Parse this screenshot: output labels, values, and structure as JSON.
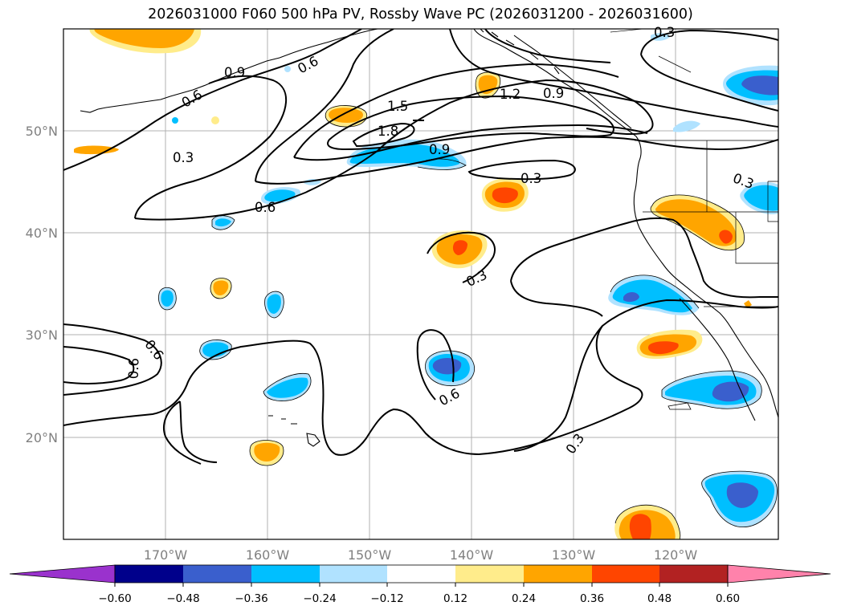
{
  "title": "2026031000 F060 500 hPa PV, Rossby Wave PC (2026031200 - 2026031600)",
  "map": {
    "lon_range": [
      -180,
      -110
    ],
    "lat_range": [
      10,
      60
    ],
    "lat_labels": [
      "50°N",
      "40°N",
      "30°N",
      "20°N"
    ],
    "lat_values": [
      50,
      40,
      30,
      20
    ],
    "lon_labels": [
      "170°W",
      "160°W",
      "150°W",
      "140°W",
      "130°W",
      "120°W"
    ],
    "lon_values": [
      -170,
      -160,
      -150,
      -140,
      -130,
      -120
    ],
    "contour_labels": [
      "0.3",
      "0.6",
      "0.9",
      "1.2",
      "1.5",
      "1.8",
      "0.9",
      "0.6",
      "0.3",
      "0.3",
      "0.6",
      "0.6",
      "0.6",
      "0.3",
      "0.3",
      "0.3",
      "0.6",
      "0.9"
    ]
  },
  "colorbar": {
    "tick_labels": [
      "−0.60",
      "−0.48",
      "−0.36",
      "−0.24",
      "−0.12",
      "0.12",
      "0.24",
      "0.36",
      "0.48",
      "0.60"
    ],
    "levels": [
      -0.6,
      -0.48,
      -0.36,
      -0.24,
      -0.12,
      0.12,
      0.24,
      0.36,
      0.48,
      0.6
    ],
    "colors": [
      "#9a32cd",
      "#00008b",
      "#3a5fcd",
      "#00bfff",
      "#b0e2ff",
      "#ffffff",
      "#ffec8b",
      "#ffa500",
      "#ff4500",
      "#b22222",
      "#ff82ab"
    ]
  }
}
